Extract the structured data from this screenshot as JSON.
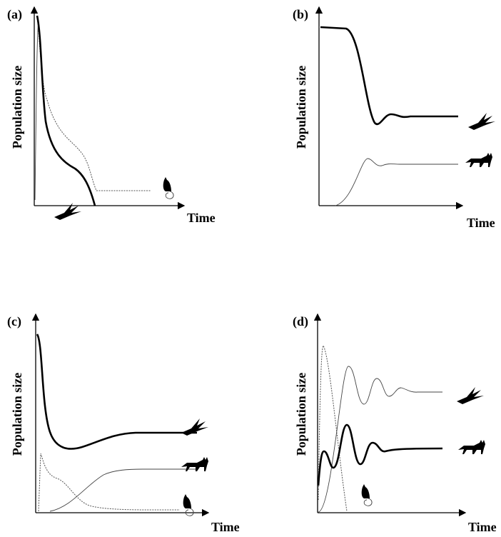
{
  "panels": [
    {
      "label": "(a)",
      "y_label": "Population size",
      "x_label": "Time"
    },
    {
      "label": "(b)",
      "y_label": "Population size",
      "x_label": "Time"
    },
    {
      "label": "(c)",
      "y_label": "Population size",
      "x_label": "Time"
    },
    {
      "label": "(d)",
      "y_label": "Population size",
      "x_label": "Time"
    }
  ]
}
